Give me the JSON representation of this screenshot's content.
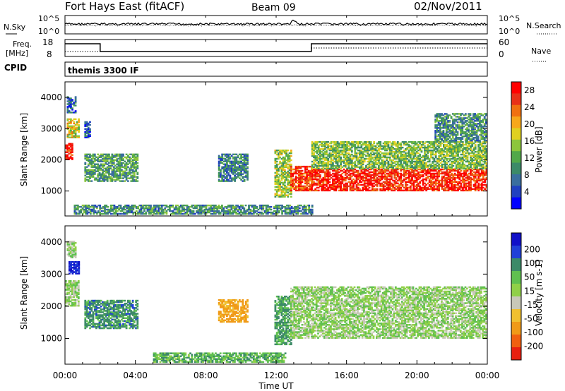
{
  "header": {
    "station": "Fort Hays East (fitACF)",
    "beam": "Beam 09",
    "date": "02/Nov/2011"
  },
  "top_panels": {
    "nsky_label": "N.Sky",
    "nsearch_label": "N.Search",
    "noise_ticks": [
      "10^5",
      "10^0"
    ],
    "freq_label_1": "Freq.",
    "freq_label_2": "[MHz]",
    "freq_ticks": [
      "18",
      "8"
    ],
    "nave_label": "Nave",
    "nave_ticks": [
      "60",
      "0"
    ],
    "cpid_label": "CPID",
    "cpid_text": "themis 3300 IF"
  },
  "x_axis": {
    "label": "Time UT",
    "ticks": [
      "00:00",
      "04:00",
      "08:00",
      "12:00",
      "16:00",
      "20:00",
      "00:00"
    ]
  },
  "colors": {
    "power": [
      "#0000ff",
      "#2040c0",
      "#3a6e9e",
      "#3c8a68",
      "#52a84a",
      "#8cc63c",
      "#e0d020",
      "#f7a71a",
      "#f07010",
      "#e83018",
      "#ff0000"
    ],
    "velocity": [
      "#1010c8",
      "#2040d8",
      "#3c8a68",
      "#60c050",
      "#90d048",
      "#c8c8b8",
      "#f0c030",
      "#f09a18",
      "#f06010",
      "#e82010"
    ]
  },
  "chart_data": [
    {
      "type": "heatmap",
      "name": "power",
      "ylabel": "Slant Range [km]",
      "xlabel": "Time UT",
      "xlim_hours": [
        0,
        24
      ],
      "ylim": [
        200,
        4500
      ],
      "yticks": [
        1000,
        2000,
        3000,
        4000
      ],
      "colorbar": {
        "label": "Power [dB]",
        "ticks": [
          4,
          8,
          12,
          16,
          20,
          24,
          28
        ],
        "range": [
          0,
          30
        ]
      },
      "regions": [
        {
          "t": [
            0.0,
            0.4
          ],
          "r": [
            2000,
            2500
          ],
          "level": 0.95
        },
        {
          "t": [
            0.1,
            0.8
          ],
          "r": [
            2700,
            3300
          ],
          "level": 0.6
        },
        {
          "t": [
            0.1,
            0.6
          ],
          "r": [
            3500,
            4000
          ],
          "level": 0.2
        },
        {
          "t": [
            1.1,
            1.4
          ],
          "r": [
            2700,
            3200
          ],
          "level": 0.15
        },
        {
          "t": [
            1.1,
            4.1
          ],
          "r": [
            1300,
            2200
          ],
          "level": 0.35
        },
        {
          "t": [
            8.7,
            10.4
          ],
          "r": [
            1300,
            2200
          ],
          "level": 0.25
        },
        {
          "t": [
            11.9,
            12.8
          ],
          "r": [
            800,
            2300
          ],
          "level": 0.5
        },
        {
          "t": [
            12.8,
            14.0
          ],
          "r": [
            1000,
            1800
          ],
          "level": 0.9
        },
        {
          "t": [
            14.0,
            23.9
          ],
          "r": [
            1000,
            1700
          ],
          "level": 0.95
        },
        {
          "t": [
            14.0,
            23.9
          ],
          "r": [
            1700,
            2600
          ],
          "level": 0.45
        },
        {
          "t": [
            21.0,
            23.9
          ],
          "r": [
            2600,
            3500
          ],
          "level": 0.3
        },
        {
          "t": [
            0.5,
            14.0
          ],
          "r": [
            250,
            550
          ],
          "level": 0.3
        }
      ]
    },
    {
      "type": "heatmap",
      "name": "velocity",
      "ylabel": "Slant Range [km]",
      "xlabel": "Time UT",
      "xlim_hours": [
        0,
        24
      ],
      "ylim": [
        200,
        4500
      ],
      "yticks": [
        1000,
        2000,
        3000,
        4000
      ],
      "colorbar": {
        "label": "Velocity [m s-1]",
        "ticks": [
          200,
          100,
          50,
          15,
          -15,
          -50,
          -100,
          -200
        ],
        "range": [
          -250,
          250
        ]
      },
      "regions": [
        {
          "t": [
            0.0,
            0.8
          ],
          "r": [
            2000,
            2800
          ],
          "velocity": 0
        },
        {
          "t": [
            0.2,
            0.8
          ],
          "r": [
            3000,
            3400
          ],
          "velocity": 200
        },
        {
          "t": [
            0.1,
            0.6
          ],
          "r": [
            3500,
            4000
          ],
          "velocity": 0
        },
        {
          "t": [
            1.1,
            4.1
          ],
          "r": [
            1300,
            2200
          ],
          "velocity": 70
        },
        {
          "t": [
            8.7,
            10.4
          ],
          "r": [
            1500,
            2200
          ],
          "velocity": -120
        },
        {
          "t": [
            11.9,
            12.8
          ],
          "r": [
            800,
            2300
          ],
          "velocity": 60
        },
        {
          "t": [
            12.8,
            23.9
          ],
          "r": [
            1000,
            2600
          ],
          "velocity": 0
        },
        {
          "t": [
            5.0,
            12.5
          ],
          "r": [
            250,
            550
          ],
          "velocity": 40
        }
      ]
    }
  ]
}
